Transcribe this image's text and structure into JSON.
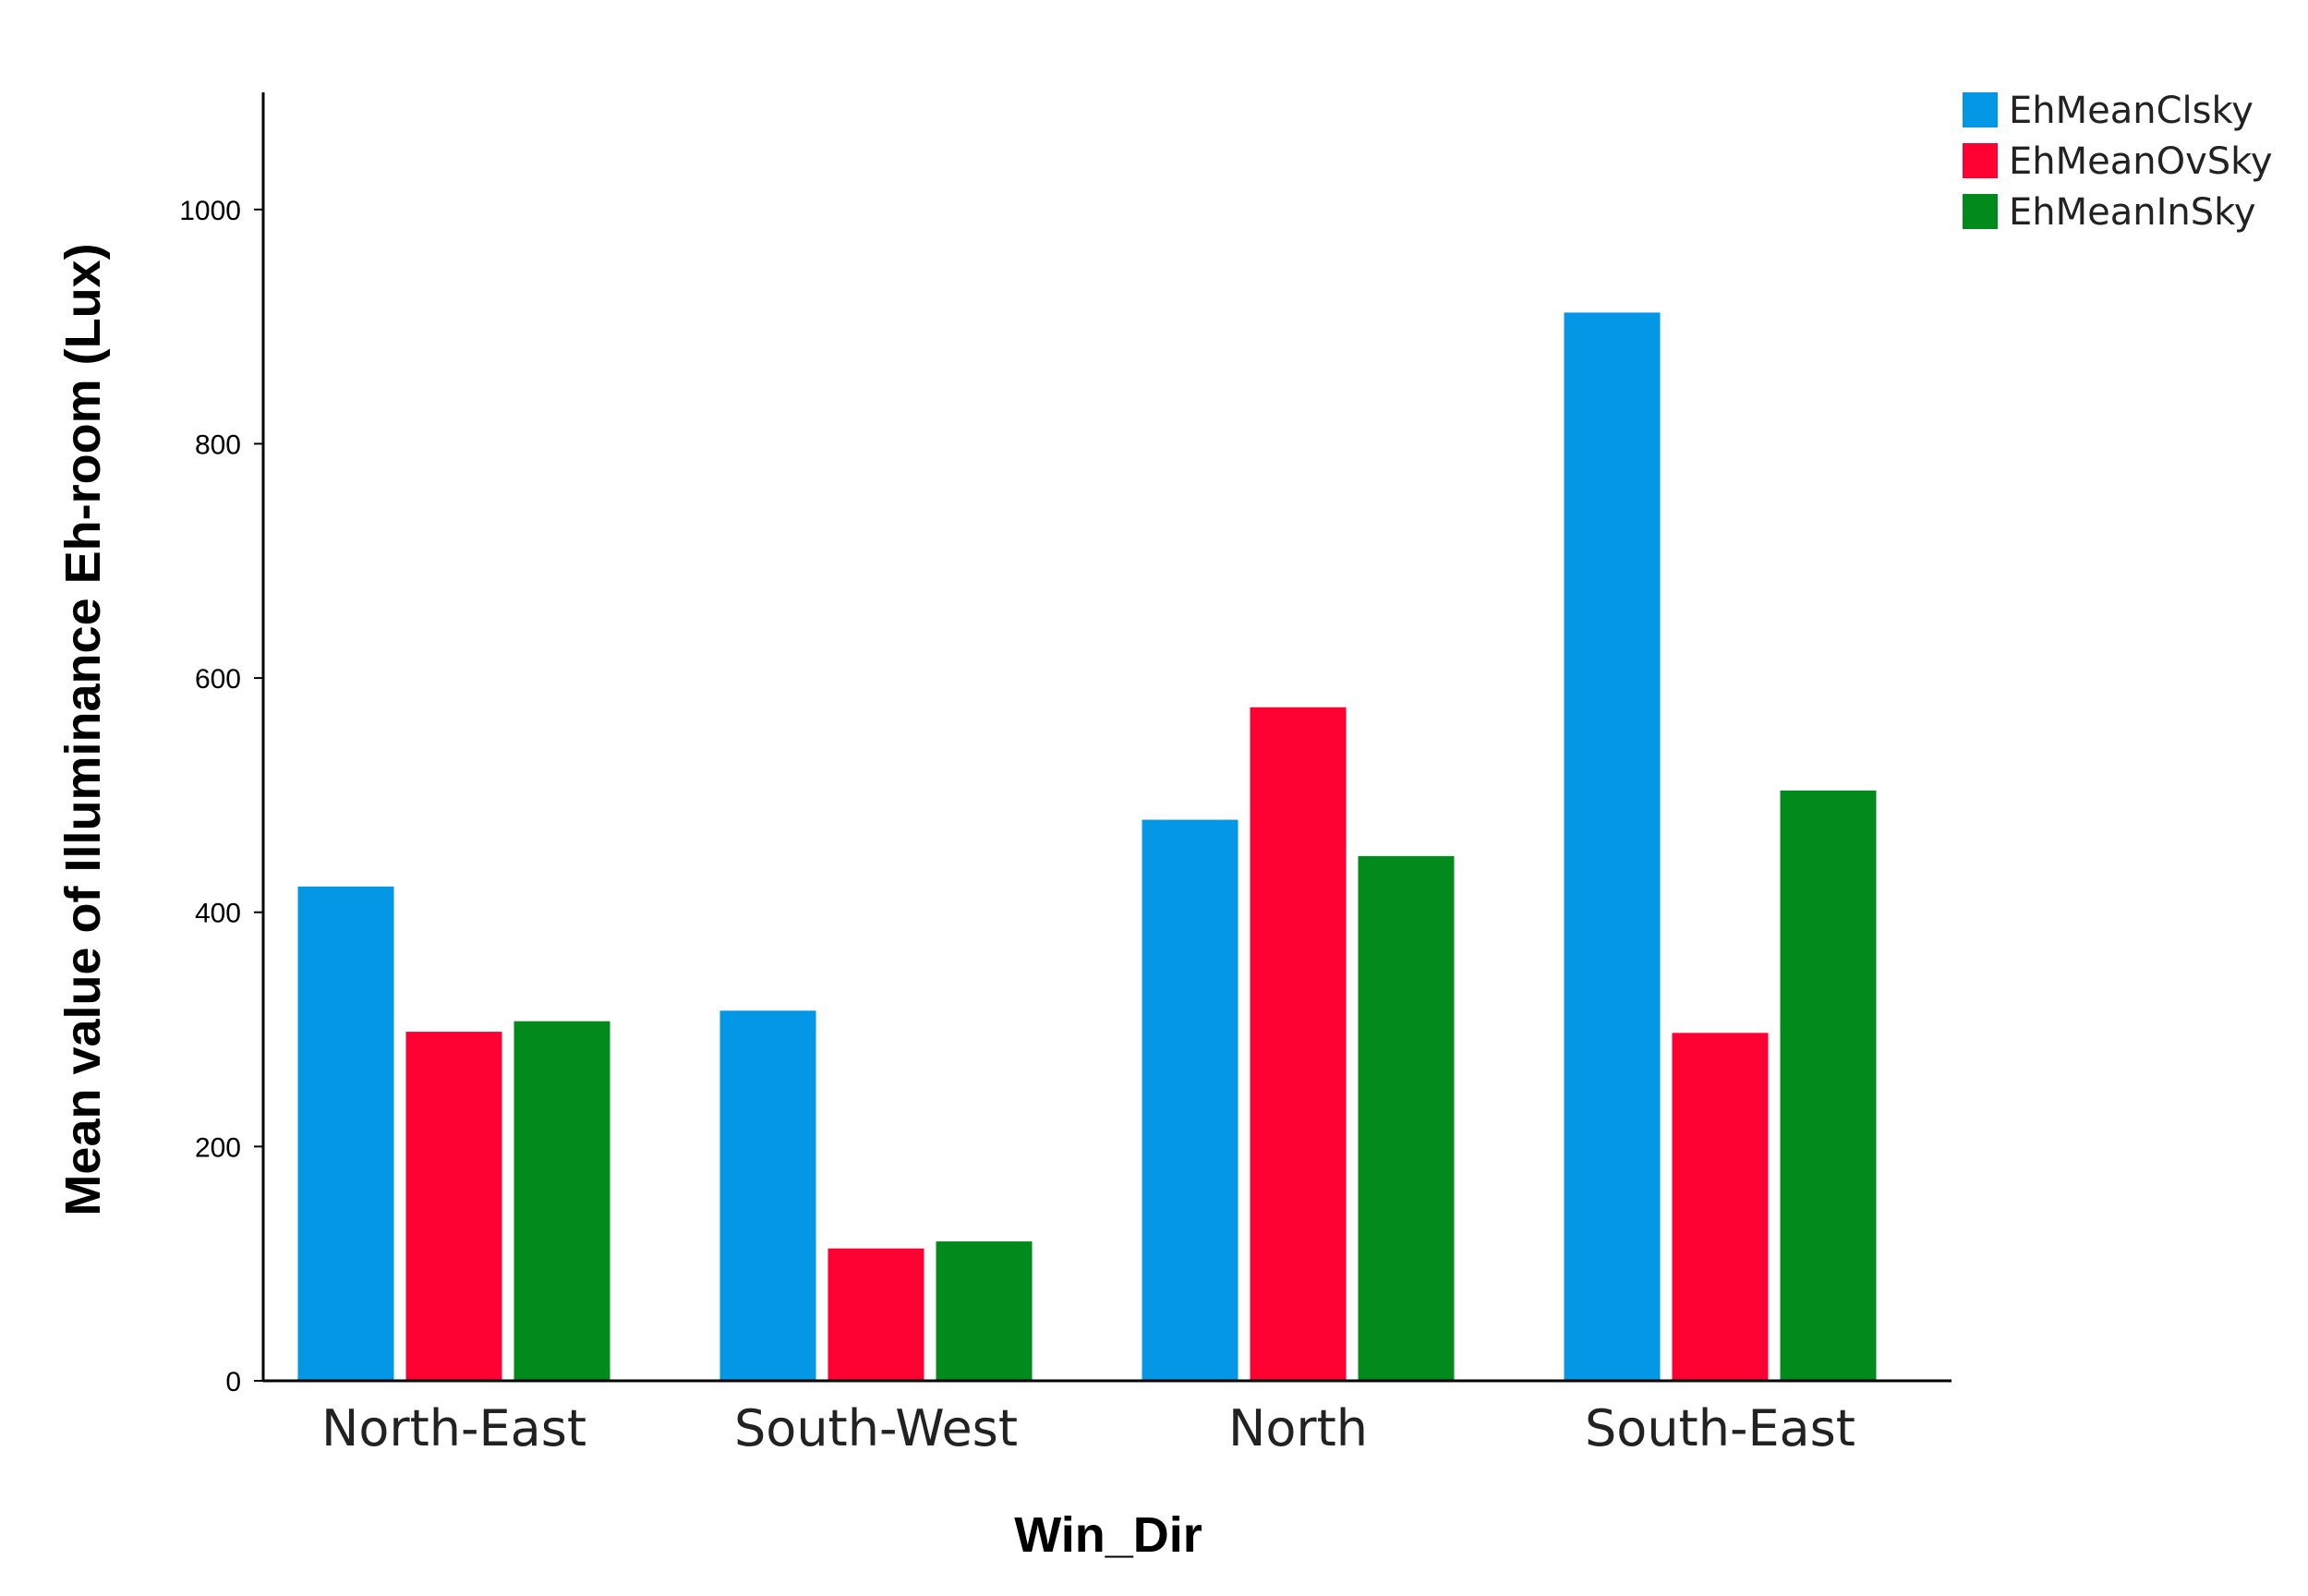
{
  "chart_data": {
    "type": "bar",
    "title": "",
    "xlabel": "Win_Dir",
    "ylabel": "Mean value of Illuminance Eh-room (Lux)",
    "categories": [
      "North-East",
      "South-West",
      "North",
      "South-East"
    ],
    "series": [
      {
        "name": "EhMeanClsky",
        "color": "#0497e6",
        "values": [
          422,
          316,
          479,
          912
        ]
      },
      {
        "name": "EhMeanOvSky",
        "color": "#ff0033",
        "values": [
          298,
          113,
          575,
          297
        ]
      },
      {
        "name": "EhMeanInSky",
        "color": "#038a1c",
        "values": [
          307,
          119,
          448,
          504
        ]
      }
    ],
    "ylim": [
      0,
      1100
    ],
    "yticks": [
      "0",
      "200",
      "400",
      "600",
      "800",
      "1000"
    ],
    "grid": false,
    "legend_position": "top-right"
  }
}
